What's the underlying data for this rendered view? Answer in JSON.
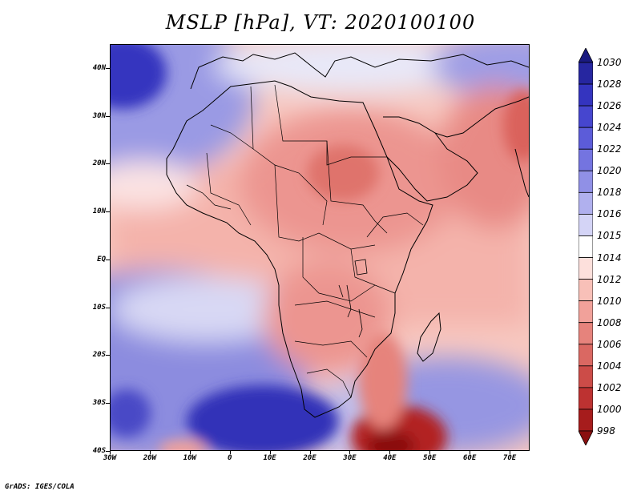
{
  "title": "MSLP [hPa], VT: 2020100100",
  "credit": "GrADS: IGES/COLA",
  "map": {
    "extent": {
      "lon_min": -30,
      "lon_max": 75,
      "lat_min": -40,
      "lat_max": 45
    },
    "y_tick_labels": [
      "40N",
      "30N",
      "20N",
      "10N",
      "EQ",
      "10S",
      "20S",
      "30S",
      "40S"
    ],
    "x_tick_labels": [
      "30W",
      "20W",
      "10W",
      "0",
      "10E",
      "20E",
      "30E",
      "40E",
      "50E",
      "60E",
      "70E"
    ],
    "features": [
      {
        "name": "high-azores",
        "level": "1030"
      },
      {
        "name": "high-south-atlantic",
        "level": "1026"
      },
      {
        "name": "high-mascarene",
        "level": "1022"
      },
      {
        "name": "low-sudan",
        "level": "1006"
      },
      {
        "name": "low-persian-gulf",
        "level": "1004"
      },
      {
        "name": "low-south-of-madagascar",
        "level": "998"
      }
    ]
  },
  "colorbar": {
    "labels": [
      "1030",
      "1028",
      "1026",
      "1024",
      "1022",
      "1020",
      "1018",
      "1016",
      "1015",
      "1014",
      "1012",
      "1010",
      "1008",
      "1006",
      "1004",
      "1002",
      "1000",
      "998"
    ],
    "colors": [
      "#1a1a80",
      "#2626a0",
      "#3434bf",
      "#4646cf",
      "#5c5cd9",
      "#7474e0",
      "#9090e6",
      "#b0b0ee",
      "#d4d4f6",
      "#ffffff",
      "#fde0dc",
      "#f8c0b8",
      "#f1a19a",
      "#e6837c",
      "#da6862",
      "#cc4c48",
      "#bd3231",
      "#a61c1c",
      "#8a1010"
    ]
  }
}
